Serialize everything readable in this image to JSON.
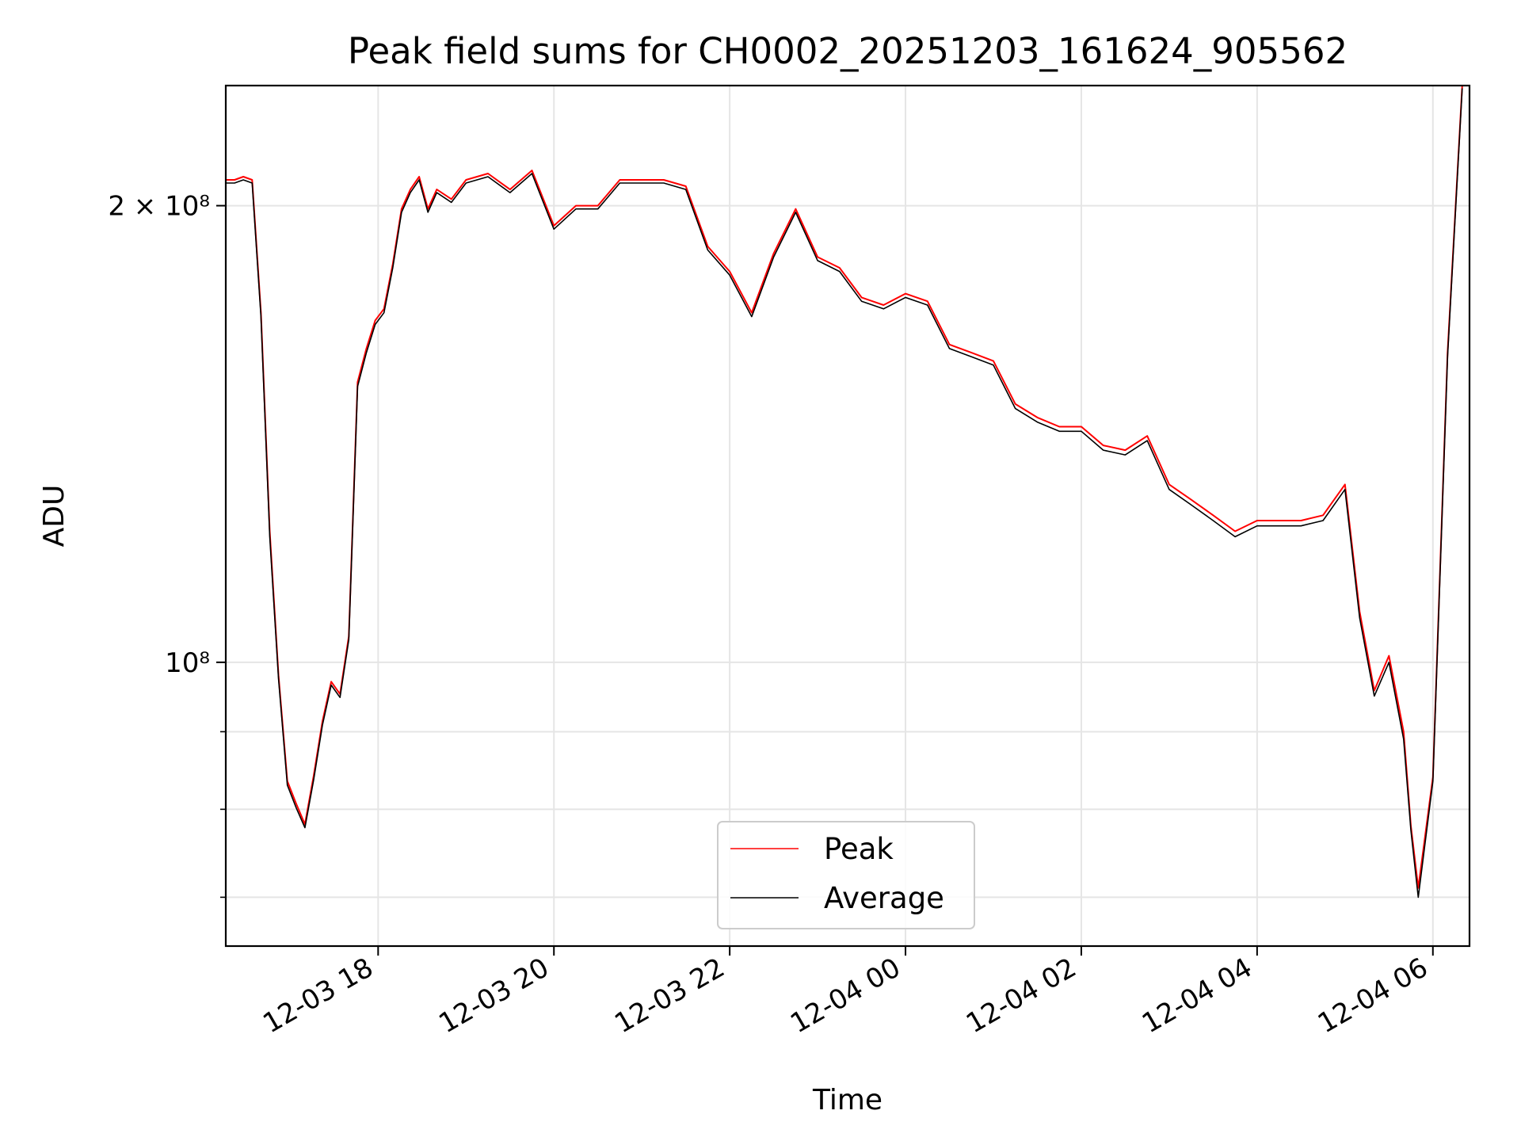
{
  "chart_data": {
    "type": "line",
    "title": "Peak field sums for CH0002_20251203_161624_905562",
    "xlabel": "Time",
    "ylabel": "ADU",
    "x_ticks": [
      "12-03 18",
      "12-03 20",
      "12-03 22",
      "12-04 00",
      "12-04 02",
      "12-04 04",
      "12-04 06"
    ],
    "y_ticks": [
      {
        "label": "2 × 10⁸",
        "value": 200000000
      },
      {
        "label": "10⁸",
        "value": 100000000
      }
    ],
    "yscale": "log",
    "xlim": [
      "2025-12-03 16:16",
      "2025-12-04 06:25"
    ],
    "ylim": [
      65000000,
      240000000
    ],
    "grid": true,
    "legend_position": "lower-center",
    "x": [
      "2025-12-03 16:16",
      "2025-12-03 16:22",
      "2025-12-03 16:28",
      "2025-12-03 16:34",
      "2025-12-03 16:40",
      "2025-12-03 16:46",
      "2025-12-03 16:52",
      "2025-12-03 16:58",
      "2025-12-03 17:04",
      "2025-12-03 17:10",
      "2025-12-03 17:16",
      "2025-12-03 17:22",
      "2025-12-03 17:28",
      "2025-12-03 17:34",
      "2025-12-03 17:40",
      "2025-12-03 17:46",
      "2025-12-03 17:52",
      "2025-12-03 17:58",
      "2025-12-03 18:04",
      "2025-12-03 18:10",
      "2025-12-03 18:16",
      "2025-12-03 18:22",
      "2025-12-03 18:28",
      "2025-12-03 18:34",
      "2025-12-03 18:40",
      "2025-12-03 18:50",
      "2025-12-03 19:00",
      "2025-12-03 19:15",
      "2025-12-03 19:30",
      "2025-12-03 19:45",
      "2025-12-03 20:00",
      "2025-12-03 20:15",
      "2025-12-03 20:30",
      "2025-12-03 20:45",
      "2025-12-03 21:00",
      "2025-12-03 21:15",
      "2025-12-03 21:30",
      "2025-12-03 21:45",
      "2025-12-03 22:00",
      "2025-12-03 22:15",
      "2025-12-03 22:30",
      "2025-12-03 22:45",
      "2025-12-03 23:00",
      "2025-12-03 23:15",
      "2025-12-03 23:30",
      "2025-12-03 23:45",
      "2025-12-04 00:00",
      "2025-12-04 00:15",
      "2025-12-04 00:30",
      "2025-12-04 00:45",
      "2025-12-04 01:00",
      "2025-12-04 01:15",
      "2025-12-04 01:30",
      "2025-12-04 01:45",
      "2025-12-04 02:00",
      "2025-12-04 02:15",
      "2025-12-04 02:30",
      "2025-12-04 02:45",
      "2025-12-04 03:00",
      "2025-12-04 03:15",
      "2025-12-04 03:30",
      "2025-12-04 03:45",
      "2025-12-04 04:00",
      "2025-12-04 04:15",
      "2025-12-04 04:30",
      "2025-12-04 04:45",
      "2025-12-04 05:00",
      "2025-12-04 05:10",
      "2025-12-04 05:20",
      "2025-12-04 05:30",
      "2025-12-04 05:40",
      "2025-12-04 05:45",
      "2025-12-04 05:50",
      "2025-12-04 06:00",
      "2025-12-04 06:10",
      "2025-12-04 06:20"
    ],
    "series": [
      {
        "name": "Peak",
        "color": "#ff0000",
        "values": [
          208000000,
          208000000,
          209000000,
          208000000,
          170000000,
          122000000,
          98000000,
          83500000,
          80700000,
          78200000,
          84200000,
          91400000,
          97100000,
          95300000,
          104000000,
          153000000,
          161000000,
          168000000,
          171000000,
          183000000,
          199000000,
          205000000,
          209000000,
          199000000,
          205000000,
          202000000,
          208000000,
          210000000,
          205000000,
          211000000,
          194000000,
          200000000,
          200000000,
          208000000,
          208000000,
          208000000,
          206000000,
          188000000,
          181000000,
          170000000,
          186000000,
          199000000,
          185000000,
          182000000,
          174000000,
          172000000,
          175000000,
          173000000,
          162000000,
          160000000,
          158000000,
          148000000,
          145000000,
          143000000,
          143000000,
          139000000,
          138000000,
          141000000,
          131000000,
          128000000,
          125000000,
          122000000,
          124000000,
          124000000,
          124000000,
          125000000,
          131000000,
          108000000,
          95800000,
          101000000,
          90000000,
          78000000,
          71000000,
          84000000,
          160000000,
          240000000
        ]
      },
      {
        "name": "Average",
        "color": "#000000",
        "values": [
          207000000,
          207000000,
          208000000,
          207000000,
          169000000,
          121000000,
          97500000,
          83000000,
          80200000,
          77800000,
          83700000,
          90900000,
          96600000,
          94800000,
          103500000,
          152000000,
          160000000,
          167000000,
          170000000,
          182000000,
          198000000,
          204000000,
          208000000,
          198000000,
          204000000,
          201000000,
          207000000,
          209000000,
          204000000,
          210000000,
          193000000,
          199000000,
          199000000,
          207000000,
          207000000,
          207000000,
          205000000,
          187000000,
          180000000,
          169000000,
          185000000,
          198000000,
          184000000,
          181000000,
          173000000,
          171000000,
          174000000,
          172000000,
          161000000,
          159000000,
          157000000,
          147000000,
          144000000,
          142000000,
          142000000,
          138000000,
          137000000,
          140000000,
          130000000,
          127000000,
          124000000,
          121000000,
          123000000,
          123000000,
          123000000,
          124000000,
          130000000,
          107000000,
          95000000,
          100000000,
          89000000,
          77500000,
          70000000,
          83500000,
          159000000,
          239000000
        ]
      }
    ]
  }
}
